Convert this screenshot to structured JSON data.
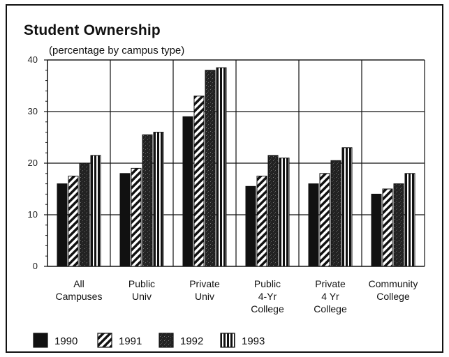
{
  "chart_data": {
    "type": "bar",
    "title": "Student Ownership",
    "subtitle": "(percentage by campus type)",
    "xlabel": "",
    "ylabel": "",
    "ylim": [
      0,
      40
    ],
    "yticks": [
      "0",
      "10",
      "20",
      "30",
      "40"
    ],
    "grid": true,
    "legend_position": "bottom",
    "categories": [
      [
        "All",
        "Campuses"
      ],
      [
        "Public",
        "Univ"
      ],
      [
        "Private",
        "Univ"
      ],
      [
        "Public",
        "4-Yr",
        "College"
      ],
      [
        "Private",
        "4 Yr",
        "College"
      ],
      [
        "Community",
        "College"
      ]
    ],
    "series": [
      {
        "name": "1990",
        "pattern": "solid",
        "values": [
          16,
          18,
          29,
          15.5,
          16,
          14
        ]
      },
      {
        "name": "1991",
        "pattern": "diagonal",
        "values": [
          17.5,
          19,
          33,
          17.5,
          18,
          15
        ]
      },
      {
        "name": "1992",
        "pattern": "dark-speckled",
        "values": [
          20,
          25.5,
          38,
          21.5,
          20.5,
          16
        ]
      },
      {
        "name": "1993",
        "pattern": "vertical",
        "values": [
          21.5,
          26,
          38.5,
          21,
          23,
          18
        ]
      }
    ],
    "colors": {
      "ink": "#111111",
      "paper": "#ffffff"
    }
  }
}
